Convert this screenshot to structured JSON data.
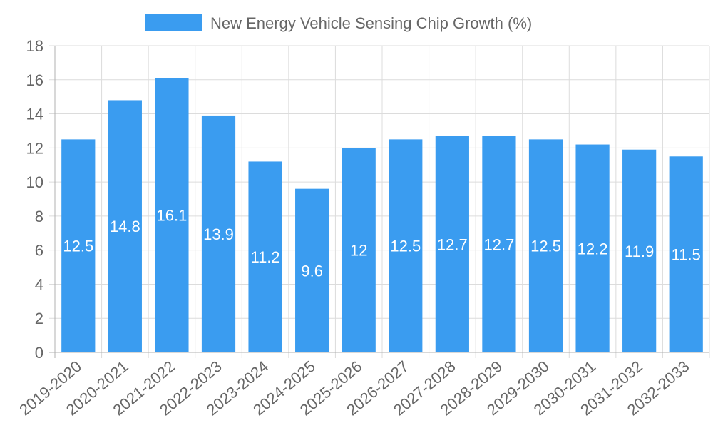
{
  "chart_data": {
    "type": "bar",
    "categories": [
      "2019-2020",
      "2020-2021",
      "2021-2022",
      "2022-2023",
      "2023-2024",
      "2024-2025",
      "2025-2026",
      "2026-2027",
      "2027-2028",
      "2028-2029",
      "2029-2030",
      "2030-2031",
      "2031-2032",
      "2032-2033"
    ],
    "series": [
      {
        "name": "New Energy Vehicle Sensing Chip Growth (%)",
        "values": [
          12.5,
          14.8,
          16.1,
          13.9,
          11.2,
          9.6,
          12,
          12.5,
          12.7,
          12.7,
          12.5,
          12.2,
          11.9,
          11.5
        ],
        "color": "#3a9cf0"
      }
    ],
    "ylim": [
      0,
      18
    ],
    "y_ticks": [
      0,
      2,
      4,
      6,
      8,
      10,
      12,
      14,
      16,
      18
    ],
    "grid": true,
    "legend_position": "top-center",
    "data_labels": true
  }
}
